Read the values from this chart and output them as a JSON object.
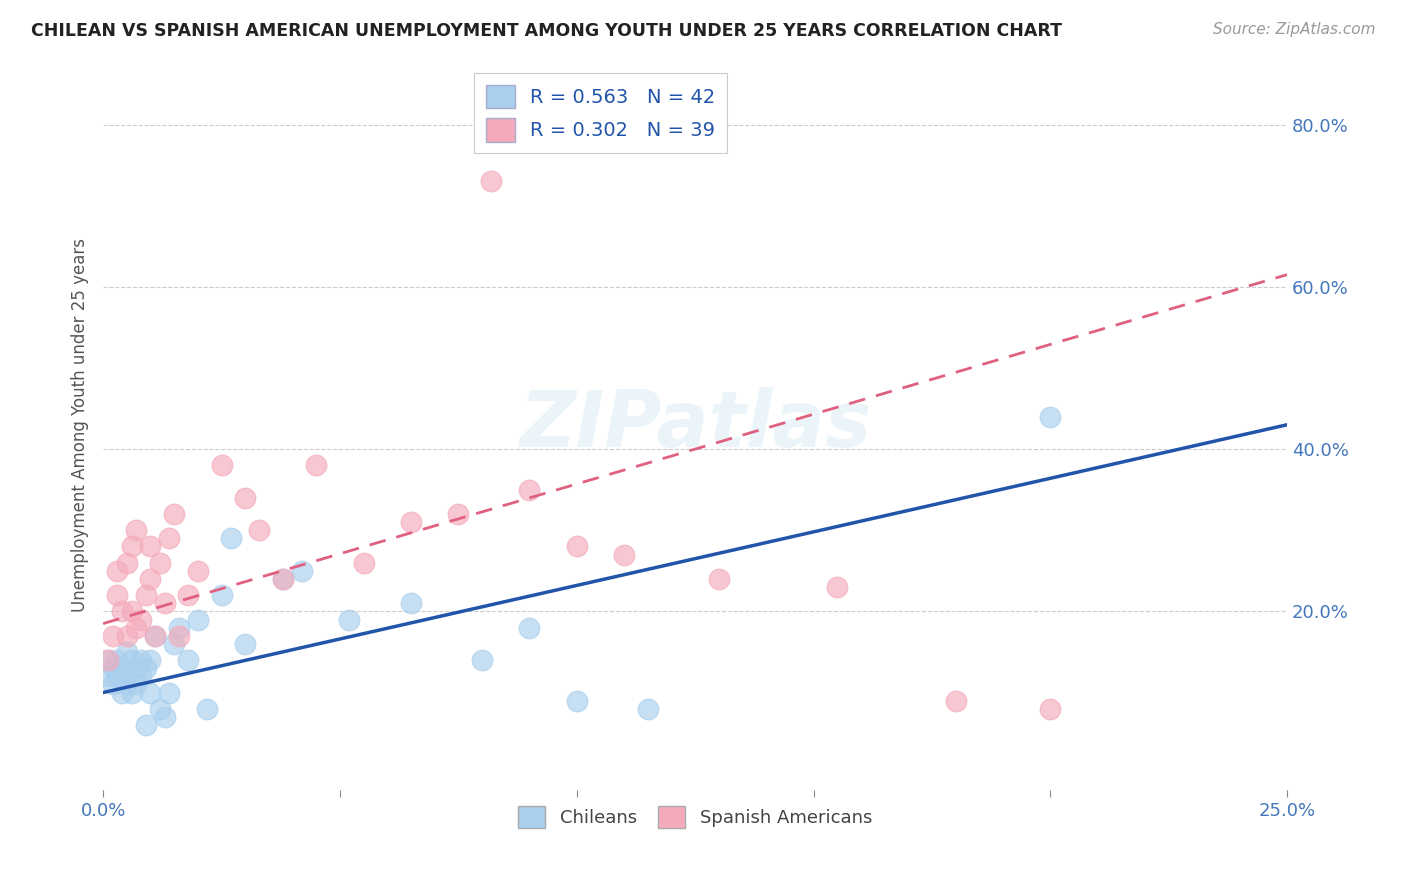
{
  "title": "CHILEAN VS SPANISH AMERICAN UNEMPLOYMENT AMONG YOUTH UNDER 25 YEARS CORRELATION CHART",
  "source": "Source: ZipAtlas.com",
  "ylabel": "Unemployment Among Youth under 25 years",
  "xlim": [
    0.0,
    0.25
  ],
  "ylim": [
    -0.02,
    0.88
  ],
  "xticks": [
    0.0,
    0.05,
    0.1,
    0.15,
    0.2,
    0.25
  ],
  "xtick_labels": [
    "0.0%",
    "",
    "",
    "",
    "",
    "25.0%"
  ],
  "yticks_right": [
    0.2,
    0.4,
    0.6,
    0.8
  ],
  "ytick_labels_right": [
    "20.0%",
    "40.0%",
    "60.0%",
    "80.0%"
  ],
  "chilean_color": "#A8CFEE",
  "spanish_color": "#F4AABB",
  "chilean_line_color": "#2255AA",
  "spanish_line_color": "#E06080",
  "chilean_R": 0.563,
  "chilean_N": 42,
  "spanish_R": 0.302,
  "spanish_N": 39,
  "watermark": "ZIPatlas",
  "chileans_x": [
    0.001,
    0.001,
    0.002,
    0.002,
    0.003,
    0.003,
    0.004,
    0.004,
    0.005,
    0.005,
    0.005,
    0.006,
    0.006,
    0.007,
    0.007,
    0.008,
    0.008,
    0.009,
    0.009,
    0.01,
    0.01,
    0.011,
    0.012,
    0.013,
    0.014,
    0.015,
    0.016,
    0.018,
    0.02,
    0.022,
    0.025,
    0.027,
    0.03,
    0.038,
    0.042,
    0.052,
    0.065,
    0.08,
    0.09,
    0.1,
    0.115,
    0.2
  ],
  "chileans_y": [
    0.14,
    0.12,
    0.13,
    0.11,
    0.14,
    0.12,
    0.1,
    0.13,
    0.15,
    0.12,
    0.11,
    0.14,
    0.1,
    0.13,
    0.11,
    0.14,
    0.12,
    0.13,
    0.06,
    0.1,
    0.14,
    0.17,
    0.08,
    0.07,
    0.1,
    0.16,
    0.18,
    0.14,
    0.19,
    0.08,
    0.22,
    0.29,
    0.16,
    0.24,
    0.25,
    0.19,
    0.21,
    0.14,
    0.18,
    0.09,
    0.08,
    0.44
  ],
  "spanish_x": [
    0.001,
    0.002,
    0.003,
    0.003,
    0.004,
    0.005,
    0.005,
    0.006,
    0.006,
    0.007,
    0.007,
    0.008,
    0.009,
    0.01,
    0.01,
    0.011,
    0.012,
    0.013,
    0.014,
    0.015,
    0.016,
    0.018,
    0.02,
    0.025,
    0.03,
    0.033,
    0.038,
    0.045,
    0.055,
    0.065,
    0.075,
    0.082,
    0.09,
    0.1,
    0.11,
    0.13,
    0.155,
    0.18,
    0.2
  ],
  "spanish_y": [
    0.14,
    0.17,
    0.22,
    0.25,
    0.2,
    0.26,
    0.17,
    0.28,
    0.2,
    0.3,
    0.18,
    0.19,
    0.22,
    0.24,
    0.28,
    0.17,
    0.26,
    0.21,
    0.29,
    0.32,
    0.17,
    0.22,
    0.25,
    0.38,
    0.34,
    0.3,
    0.24,
    0.38,
    0.26,
    0.31,
    0.32,
    0.73,
    0.35,
    0.28,
    0.27,
    0.24,
    0.23,
    0.09,
    0.08
  ],
  "chilean_trend_x0": 0.0,
  "chilean_trend_y0": 0.1,
  "chilean_trend_x1": 0.25,
  "chilean_trend_y1": 0.43,
  "spanish_trend_x0": 0.0,
  "spanish_trend_y0": 0.185,
  "spanish_trend_x1": 0.25,
  "spanish_trend_y1": 0.615
}
